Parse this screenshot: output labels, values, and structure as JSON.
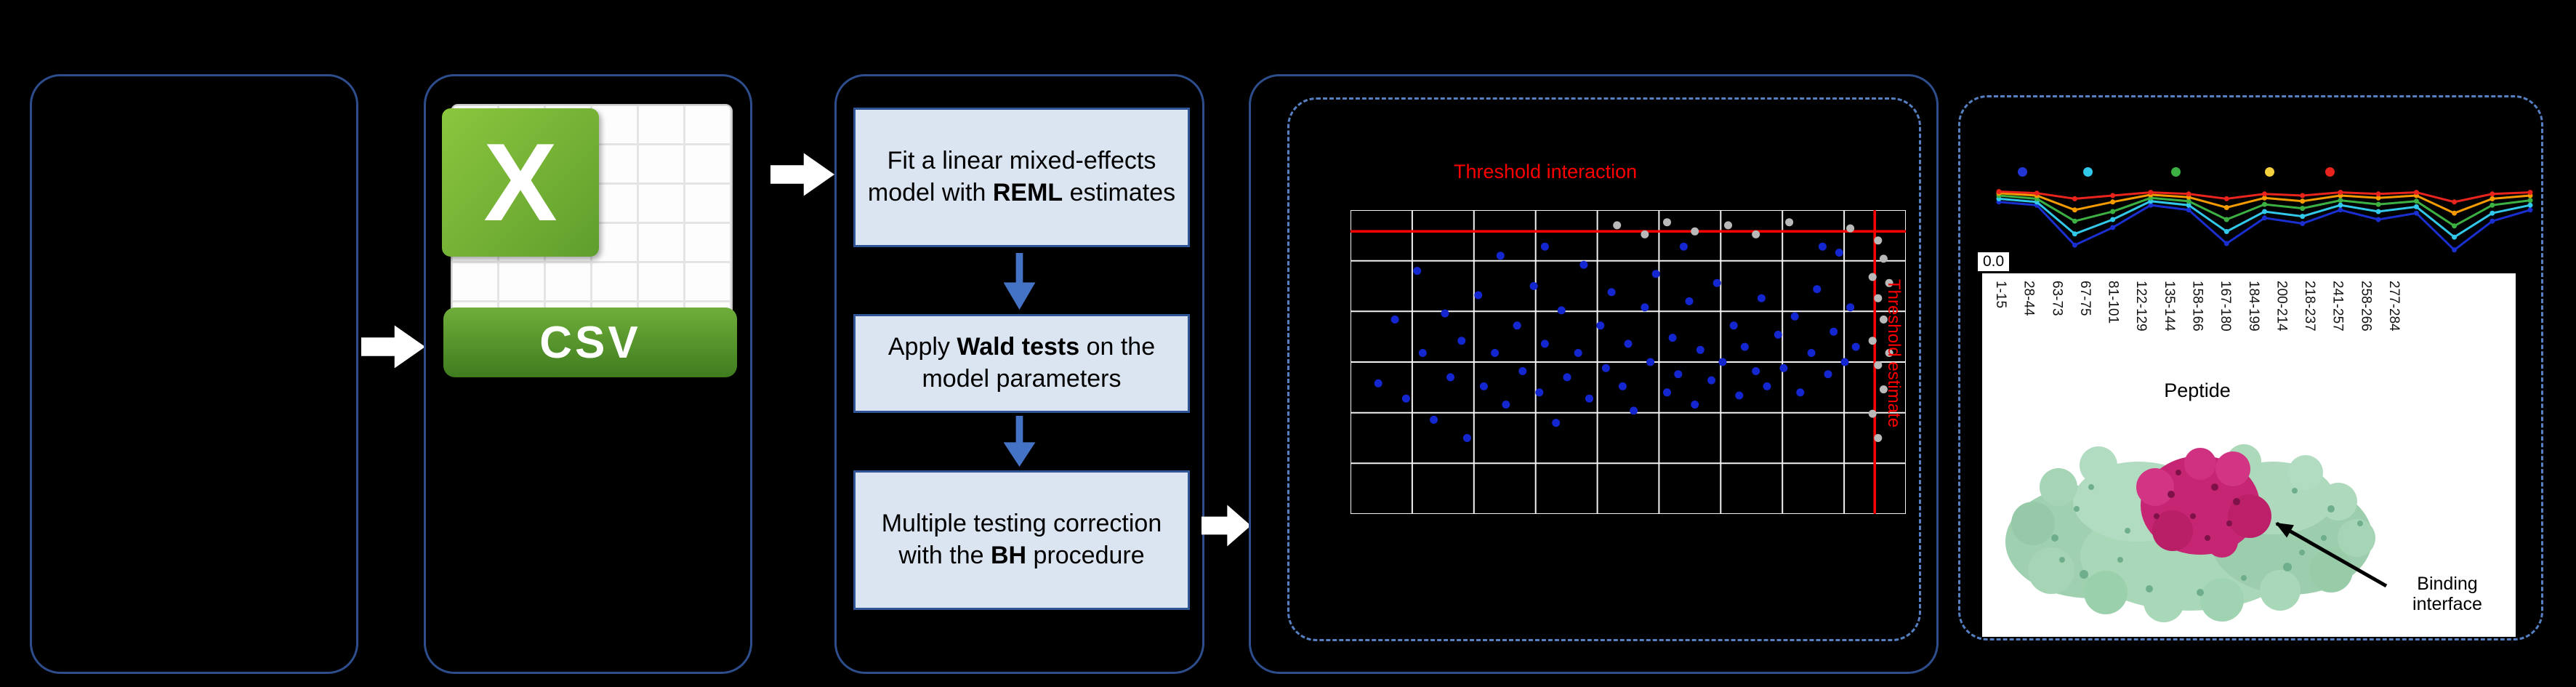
{
  "figure": {
    "background": "#000000",
    "panel_border": "#2e4d8c",
    "dashed_border": "#557fc0"
  },
  "csv_icon": {
    "letter": "X",
    "label": "CSV"
  },
  "pipeline": {
    "steps": [
      {
        "pre": "Fit a linear mixed-effects model with ",
        "bold": "REML",
        "post": " estimates"
      },
      {
        "pre": "Apply ",
        "bold": "Wald tests",
        "post": " on the model parameters"
      },
      {
        "pre": "Multiple testing correction with the ",
        "bold": "BH",
        "post": " procedure"
      }
    ]
  },
  "volcano": {
    "title": "Threshold interaction",
    "side_label": "Threshold estimate"
  },
  "uptake": {
    "y_tick": "0.0",
    "x_label": "Peptide"
  },
  "structure": {
    "label": "Binding interface"
  },
  "chart_data": [
    {
      "type": "scatter",
      "name": "threshold-scatter",
      "title": "Threshold interaction",
      "x_threshold_label": "Threshold estimate",
      "grid": {
        "cols": 9,
        "rows": 6
      },
      "grid_color": "#f2f2f2",
      "threshold_color": "#ff0000",
      "threshold_y_pct": 7,
      "threshold_x_pct": 94.4,
      "series": [
        {
          "name": "significant-peptides",
          "color": "#1326cf",
          "points": [
            [
              5,
              57
            ],
            [
              8,
              36
            ],
            [
              10,
              62
            ],
            [
              12,
              20
            ],
            [
              13,
              47
            ],
            [
              15,
              69
            ],
            [
              17,
              34
            ],
            [
              18,
              55
            ],
            [
              20,
              43
            ],
            [
              21,
              75
            ],
            [
              23,
              28
            ],
            [
              24,
              58
            ],
            [
              26,
              47
            ],
            [
              27,
              15
            ],
            [
              28,
              64
            ],
            [
              30,
              38
            ],
            [
              31,
              53
            ],
            [
              33,
              25
            ],
            [
              34,
              60
            ],
            [
              35,
              44
            ],
            [
              35,
              12
            ],
            [
              37,
              70
            ],
            [
              38,
              33
            ],
            [
              39,
              55
            ],
            [
              41,
              47
            ],
            [
              42,
              18
            ],
            [
              43,
              62
            ],
            [
              45,
              38
            ],
            [
              46,
              52
            ],
            [
              47,
              27
            ],
            [
              49,
              58
            ],
            [
              50,
              44
            ],
            [
              51,
              66
            ],
            [
              53,
              32
            ],
            [
              54,
              50
            ],
            [
              55,
              21
            ],
            [
              57,
              60
            ],
            [
              58,
              42
            ],
            [
              59,
              54
            ],
            [
              60,
              12
            ],
            [
              61,
              30
            ],
            [
              62,
              64
            ],
            [
              63,
              46
            ],
            [
              65,
              56
            ],
            [
              66,
              24
            ],
            [
              67,
              50
            ],
            [
              69,
              38
            ],
            [
              70,
              61
            ],
            [
              71,
              45
            ],
            [
              73,
              53
            ],
            [
              74,
              29
            ],
            [
              75,
              58
            ],
            [
              77,
              41
            ],
            [
              78,
              52
            ],
            [
              80,
              35
            ],
            [
              81,
              60
            ],
            [
              83,
              47
            ],
            [
              84,
              26
            ],
            [
              85,
              12
            ],
            [
              86,
              54
            ],
            [
              87,
              40
            ],
            [
              88,
              14
            ],
            [
              89,
              50
            ],
            [
              90,
              32
            ],
            [
              91,
              45
            ]
          ]
        },
        {
          "name": "non-significant-peptides",
          "color": "#b9b9b9",
          "points": [
            [
              48,
              5
            ],
            [
              53,
              8
            ],
            [
              57,
              4
            ],
            [
              62,
              7
            ],
            [
              68,
              5
            ],
            [
              73,
              8
            ],
            [
              79,
              4
            ],
            [
              90,
              6
            ],
            [
              95,
              10
            ],
            [
              96,
              16
            ],
            [
              94,
              22
            ],
            [
              95,
              29
            ],
            [
              96,
              36
            ],
            [
              94,
              43
            ],
            [
              95,
              51
            ],
            [
              96,
              59
            ],
            [
              94,
              67
            ],
            [
              95,
              75
            ],
            [
              97,
              24
            ],
            [
              97,
              47
            ]
          ]
        }
      ]
    },
    {
      "type": "line",
      "name": "uptake-lines",
      "xlabel": "Peptide",
      "ylim": [
        0,
        1
      ],
      "visible_y_ticks": [
        "0.0"
      ],
      "categories": [
        "1-15",
        "28-44",
        "63-73",
        "67-75",
        "81-101",
        "122-129",
        "135-144",
        "158-166",
        "167-180",
        "184-199",
        "200-214",
        "218-237",
        "241-257",
        "258-266",
        "277-284"
      ],
      "legend": {
        "x_pct": [
          5,
          17,
          33,
          50,
          61
        ],
        "colors": [
          "#2136d4",
          "#31c8ea",
          "#3cb043",
          "#f4d03f",
          "#e8241c"
        ]
      },
      "series": [
        {
          "name": "timepoint-1",
          "color": "#1a2fd0",
          "values": [
            0.82,
            0.78,
            0.28,
            0.5,
            0.78,
            0.72,
            0.3,
            0.62,
            0.55,
            0.72,
            0.6,
            0.68,
            0.22,
            0.58,
            0.72
          ]
        },
        {
          "name": "timepoint-2",
          "color": "#31c8ea",
          "values": [
            0.86,
            0.82,
            0.42,
            0.6,
            0.83,
            0.78,
            0.45,
            0.7,
            0.64,
            0.78,
            0.7,
            0.76,
            0.38,
            0.68,
            0.78
          ]
        },
        {
          "name": "timepoint-3",
          "color": "#3cb043",
          "values": [
            0.9,
            0.86,
            0.58,
            0.7,
            0.87,
            0.83,
            0.6,
            0.79,
            0.74,
            0.84,
            0.79,
            0.83,
            0.52,
            0.78,
            0.84
          ]
        },
        {
          "name": "timepoint-4",
          "color": "#f59b00",
          "values": [
            0.93,
            0.9,
            0.72,
            0.82,
            0.91,
            0.88,
            0.75,
            0.87,
            0.83,
            0.9,
            0.87,
            0.9,
            0.68,
            0.86,
            0.9
          ]
        },
        {
          "name": "timepoint-5",
          "color": "#e8241c",
          "values": [
            0.95,
            0.93,
            0.86,
            0.9,
            0.94,
            0.92,
            0.86,
            0.92,
            0.9,
            0.94,
            0.92,
            0.94,
            0.82,
            0.92,
            0.94
          ]
        }
      ]
    }
  ]
}
